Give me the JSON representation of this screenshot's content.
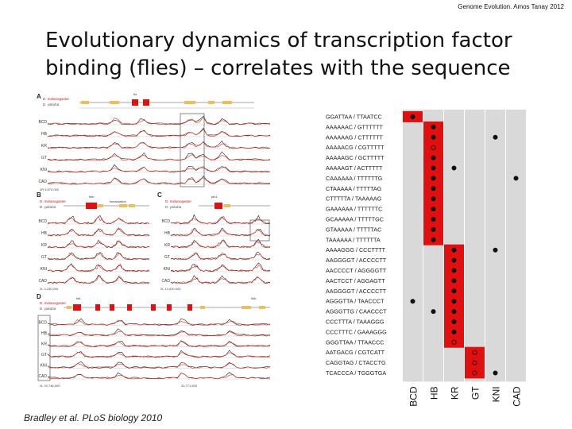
{
  "header_note": "Genome Evolution. Amos Tanay 2012",
  "title_lines": [
    "Evolutionary dynamics of transcription factor",
    "binding (flies) – correlates with the sequence"
  ],
  "citation": "Bradley et al. PLoS biology 2010",
  "left_figure": {
    "panel_labels": [
      "A",
      "B",
      "C",
      "D"
    ],
    "species": [
      "D. melanogaster",
      "D. yakuba"
    ],
    "factors": [
      "BCD",
      "HB",
      "KR",
      "GT",
      "KNI",
      "CAD"
    ],
    "coordinates": {
      "A": "2R 5,870,000",
      "B": "2L 3,230,000",
      "C": "2L 14,020,000",
      "D": "2L 20,748,000",
      "D_end": "20,771,500"
    },
    "gene_labels": {
      "A": "ftz",
      "B": "hkb",
      "B2": "fumarylation",
      "C": "ptx1",
      "D1": "hkt",
      "D2": "hkb"
    },
    "colors": {
      "black_trace": "#222222",
      "red_trace": "#e03020",
      "exon": "#e01010",
      "utr": "#e8c060"
    }
  },
  "right_figure": {
    "factor_labels": [
      "BCD",
      "HB",
      "KR",
      "GT",
      "KNI",
      "CAD"
    ],
    "sequence_pairs": [
      "GGATTAA / TTAATCC",
      "AAAAAAC / GTTTTTT",
      "AAAAAAG / CTTTTTT",
      "AAAAACG / CGTTTTT",
      "AAAAAGC / GCTTTTT",
      "AAAAAGT / ACTTTTT",
      "CAAAAAA / TTTTTTG",
      "CTAAAAA / TTTTTAG",
      "CTTTTTA / TAAAAAG",
      "GAAAAAA / TTTTTTC",
      "GCAAAAA / TTTTTGC",
      "GTAAAAA / TTTTTAC",
      "TAAAAAA / TTTTTTA",
      "AAAAGGG / CCCTTTT",
      "AAGGGGT / ACCCCTT",
      "AACCCCT / AGGGGTT",
      "AACTCCT / AGGAGTT",
      "AAGGGGT / ACCCCTT",
      "AGGGTTA / TAACCCT",
      "AGGGTTG / CAACCCT",
      "CCCTTTA / TAAAGGG",
      "CCCTTTC / GAAAGGG",
      "GGGTTAA / TTAACCC",
      "AATGACG / CGTCATT",
      "CAGGTAG / CTACCTG",
      "TCACCCA / TGGGTGA"
    ],
    "red_blocks": [
      {
        "column": 0,
        "rows": [
          0
        ]
      },
      {
        "column": 1,
        "rows": [
          1,
          2,
          3,
          4,
          5,
          6,
          7,
          8,
          9,
          10,
          11,
          12
        ]
      },
      {
        "column": 2,
        "rows": [
          13,
          14,
          15,
          16,
          17,
          18,
          19,
          20,
          21,
          22
        ]
      },
      {
        "column": 3,
        "rows": [
          23,
          24,
          25
        ]
      }
    ],
    "dots": [
      {
        "row": 0,
        "column": 0,
        "filled": true
      },
      {
        "row": 1,
        "column": 1,
        "filled": true
      },
      {
        "row": 2,
        "column": 1,
        "filled": true
      },
      {
        "row": 3,
        "column": 1,
        "filled": false
      },
      {
        "row": 4,
        "column": 1,
        "filled": true
      },
      {
        "row": 5,
        "column": 1,
        "filled": true
      },
      {
        "row": 6,
        "column": 1,
        "filled": true
      },
      {
        "row": 7,
        "column": 1,
        "filled": true
      },
      {
        "row": 8,
        "column": 1,
        "filled": true
      },
      {
        "row": 9,
        "column": 1,
        "filled": true
      },
      {
        "row": 10,
        "column": 1,
        "filled": true
      },
      {
        "row": 11,
        "column": 1,
        "filled": true
      },
      {
        "row": 12,
        "column": 1,
        "filled": true
      },
      {
        "row": 2,
        "column": 4,
        "filled": true
      },
      {
        "row": 5,
        "column": 2,
        "filled": true
      },
      {
        "row": 6,
        "column": 5,
        "filled": true
      },
      {
        "row": 13,
        "column": 2,
        "filled": true
      },
      {
        "row": 14,
        "column": 2,
        "filled": true
      },
      {
        "row": 15,
        "column": 2,
        "filled": true
      },
      {
        "row": 16,
        "column": 2,
        "filled": true
      },
      {
        "row": 17,
        "column": 2,
        "filled": true
      },
      {
        "row": 18,
        "column": 2,
        "filled": true
      },
      {
        "row": 19,
        "column": 2,
        "filled": true
      },
      {
        "row": 20,
        "column": 2,
        "filled": true
      },
      {
        "row": 21,
        "column": 2,
        "filled": true
      },
      {
        "row": 22,
        "column": 2,
        "filled": false
      },
      {
        "row": 13,
        "column": 4,
        "filled": true
      },
      {
        "row": 18,
        "column": 0,
        "filled": true
      },
      {
        "row": 19,
        "column": 1,
        "filled": true
      },
      {
        "row": 23,
        "column": 3,
        "filled": false
      },
      {
        "row": 24,
        "column": 3,
        "filled": false
      },
      {
        "row": 25,
        "column": 3,
        "filled": false
      },
      {
        "row": 25,
        "column": 4,
        "filled": true
      }
    ],
    "colors": {
      "column_bg": "#d9d9d9",
      "highlight": "#e01010",
      "dot": "#111111"
    }
  }
}
